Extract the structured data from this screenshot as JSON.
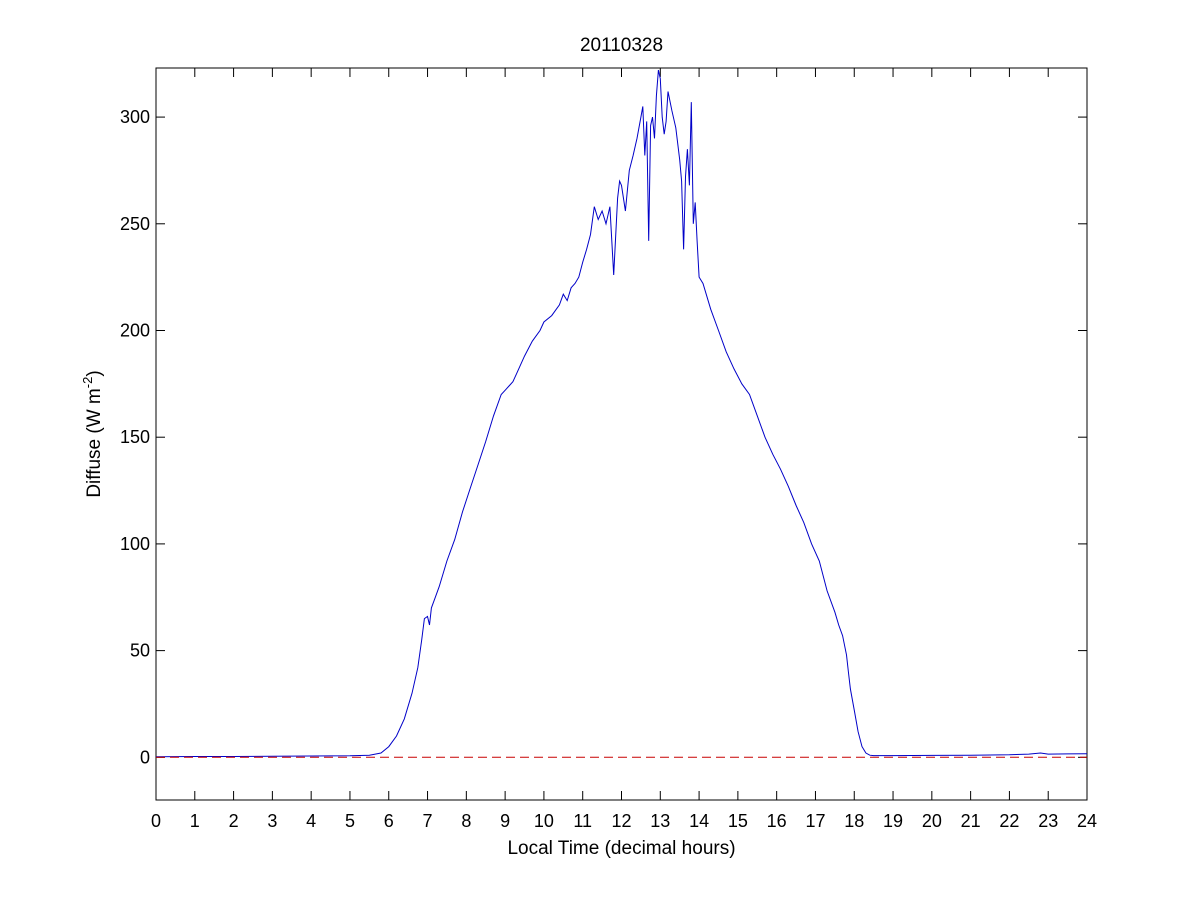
{
  "chart_data": {
    "type": "line",
    "title": "20110328",
    "xlabel": "Local Time (decimal hours)",
    "ylabel": {
      "text": "Diffuse (W m",
      "superscript": "-2",
      "suffix": ")"
    },
    "xlim": [
      0,
      24
    ],
    "ylim": [
      -20,
      323
    ],
    "x_ticks": [
      0,
      1,
      2,
      3,
      4,
      5,
      6,
      7,
      8,
      9,
      10,
      11,
      12,
      13,
      14,
      15,
      16,
      17,
      18,
      19,
      20,
      21,
      22,
      23,
      24
    ],
    "y_ticks": [
      0,
      50,
      100,
      150,
      200,
      250,
      300
    ],
    "grid": false,
    "legend": "none",
    "series": [
      {
        "color": "#0000c8",
        "style": "solid",
        "x": [
          0,
          1,
          2,
          3,
          4,
          5,
          5.5,
          5.8,
          6.0,
          6.2,
          6.4,
          6.6,
          6.75,
          6.85,
          6.92,
          7.0,
          7.05,
          7.1,
          7.2,
          7.3,
          7.5,
          7.7,
          7.9,
          8.1,
          8.3,
          8.5,
          8.7,
          8.9,
          9.0,
          9.1,
          9.2,
          9.3,
          9.5,
          9.7,
          9.9,
          10.0,
          10.2,
          10.4,
          10.5,
          10.6,
          10.7,
          10.8,
          10.9,
          11.0,
          11.1,
          11.2,
          11.3,
          11.4,
          11.5,
          11.6,
          11.7,
          11.8,
          11.9,
          11.95,
          12.0,
          12.1,
          12.2,
          12.3,
          12.4,
          12.5,
          12.55,
          12.6,
          12.65,
          12.7,
          12.75,
          12.8,
          12.85,
          12.9,
          12.95,
          13.0,
          13.05,
          13.1,
          13.15,
          13.2,
          13.3,
          13.4,
          13.5,
          13.55,
          13.6,
          13.65,
          13.7,
          13.75,
          13.8,
          13.85,
          13.9,
          13.95,
          14.0,
          14.1,
          14.3,
          14.5,
          14.7,
          14.9,
          15.1,
          15.3,
          15.5,
          15.7,
          15.9,
          16.1,
          16.3,
          16.5,
          16.7,
          16.9,
          17.1,
          17.3,
          17.5,
          17.6,
          17.7,
          17.8,
          17.85,
          17.9,
          18.0,
          18.1,
          18.2,
          18.3,
          18.4,
          18.5,
          18.6,
          18.7,
          18.8,
          19,
          20,
          21,
          22,
          22.5,
          22.8,
          23,
          23.5,
          24
        ],
        "y": [
          0.3,
          0.4,
          0.4,
          0.5,
          0.6,
          0.7,
          1.0,
          2.0,
          5,
          10,
          18,
          30,
          42,
          55,
          65,
          66,
          62,
          70,
          75,
          80,
          92,
          102,
          115,
          126,
          137,
          148,
          160,
          170,
          172,
          174,
          176,
          180,
          188,
          195,
          200,
          204,
          207,
          212,
          217,
          214,
          220,
          222,
          225,
          232,
          238,
          245,
          258,
          252,
          256,
          250,
          258,
          226,
          262,
          270,
          268,
          256,
          275,
          282,
          290,
          300,
          305,
          282,
          298,
          242,
          296,
          300,
          290,
          310,
          322,
          318,
          300,
          292,
          298,
          312,
          303,
          295,
          280,
          270,
          238,
          272,
          285,
          268,
          307,
          250,
          260,
          242,
          225,
          222,
          210,
          200,
          190,
          182,
          175,
          170,
          160,
          150,
          142,
          135,
          127,
          118,
          110,
          100,
          92,
          78,
          68,
          62,
          57,
          48,
          40,
          32,
          22,
          12,
          5,
          2,
          1,
          0.8,
          0.8,
          0.8,
          0.8,
          0.8,
          0.9,
          1.0,
          1.2,
          1.5,
          2.0,
          1.5,
          1.6,
          1.7
        ]
      },
      {
        "color": "#c80000",
        "style": "dashed",
        "x": [
          0,
          24
        ],
        "y": [
          0,
          0
        ]
      }
    ]
  }
}
